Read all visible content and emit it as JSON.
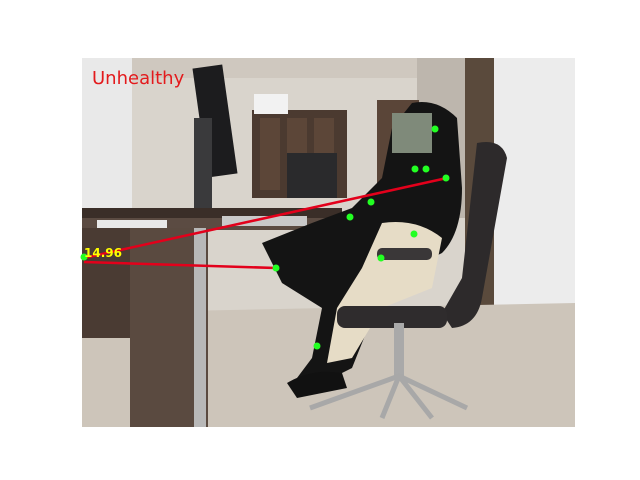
{
  "status": {
    "label": "Unhealthy",
    "color": "#e31a1c"
  },
  "angle": {
    "value": "14.96",
    "color": "#ffff00"
  },
  "overlay": {
    "line_color": "#e3001b",
    "keypoint_color": "#22ff22"
  }
}
